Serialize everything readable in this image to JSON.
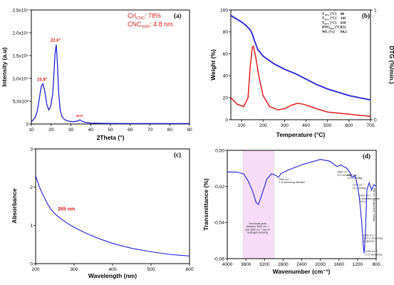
{
  "chart_data": [
    {
      "id": "a",
      "type": "line",
      "panel_label": "(a)",
      "xlabel": "2Theta (°)",
      "ylabel": "Intensity (a.u)",
      "xlim": [
        10,
        90
      ],
      "ylim": [
        0,
        25000
      ],
      "xticks": [
        "10",
        "20",
        "30",
        "40",
        "50",
        "60",
        "70",
        "80",
        "90"
      ],
      "yticks": [
        "0",
        "5,0x10³",
        "1,0x10⁴",
        "1,5x10⁴",
        "2,0x10⁴",
        "2,5x10⁴"
      ],
      "series": [
        {
          "color": "#1f1fd6",
          "x": [
            10,
            11,
            12,
            13,
            14,
            15,
            15.8,
            16.8,
            17.8,
            18.8,
            19.8,
            20.8,
            21.5,
            22.0,
            22.6,
            23.2,
            23.8,
            24.6,
            25.6,
            27,
            29,
            31,
            33,
            34.5,
            36,
            38,
            40,
            45,
            50,
            60,
            70,
            80,
            90
          ],
          "y": [
            500,
            900,
            1500,
            2800,
            5500,
            8200,
            8800,
            7200,
            4300,
            3100,
            3900,
            6500,
            11500,
            15500,
            17400,
            13000,
            7000,
            3000,
            1500,
            900,
            600,
            500,
            600,
            900,
            500,
            300,
            200,
            150,
            120,
            100,
            100,
            100,
            100
          ]
        }
      ],
      "peak_labels": [
        {
          "x": 15.8,
          "y": 8800,
          "text": "15.8°"
        },
        {
          "x": 22.6,
          "y": 17400,
          "text": "22.6°"
        },
        {
          "x": 34.5,
          "y": 900,
          "text": "34.5°"
        }
      ],
      "annotations": {
        "cri": "CrI",
        "cri_sub": "CNC",
        "cri_val": ": 78%",
        "cnc": "CNC",
        "cnc_sub": "XDR",
        "cnc_val": ": 4.8 nm"
      }
    },
    {
      "id": "b",
      "type": "line",
      "panel_label": "(b)",
      "xlabel": "Temperature (°C)",
      "ylabel": "Weight (%)",
      "y2label": "DTG (%/min.)",
      "xlim": [
        50,
        700
      ],
      "ylim": [
        0,
        100
      ],
      "y2lim": [
        0,
        1
      ],
      "xticks": [
        "100",
        "200",
        "300",
        "400",
        "500",
        "600",
        "700"
      ],
      "yticks": [
        "0",
        "20",
        "40",
        "60",
        "80",
        "100"
      ],
      "y2ticks": [
        "0",
        "1"
      ],
      "series": [
        {
          "axis": "left",
          "color": "#1f1fd6",
          "x": [
            50,
            75,
            100,
            120,
            140,
            150,
            160,
            175,
            200,
            250,
            300,
            350,
            400,
            450,
            500,
            550,
            600,
            650,
            700
          ],
          "y": [
            95,
            92,
            89,
            86,
            82,
            78,
            72,
            64,
            58,
            51,
            46,
            42,
            37,
            32,
            28,
            25,
            22,
            20,
            18
          ]
        },
        {
          "axis": "left",
          "color": "#e01b1b",
          "x": [
            50,
            80,
            110,
            130,
            140,
            150,
            155,
            165,
            180,
            200,
            230,
            270,
            300,
            330,
            360,
            390,
            420,
            450,
            500,
            550,
            600,
            650,
            700
          ],
          "y": [
            20,
            14,
            12,
            20,
            48,
            66,
            67,
            58,
            40,
            22,
            12,
            9,
            10,
            13,
            15,
            14,
            12,
            10,
            7,
            6,
            5,
            4,
            3
          ]
        }
      ],
      "table": [
        {
          "label": "T",
          "sub": "10%",
          "unit": " (°C)",
          "value": "88"
        },
        {
          "label": "T",
          "sub": "50%",
          "unit": " (°C)",
          "value": "243"
        },
        {
          "label": "T",
          "sub": "80%",
          "unit": " (°C)",
          "value": "618"
        },
        {
          "label": "DTG",
          "sub": "max",
          "unit": " (°C)",
          "value": "152"
        },
        {
          "label": "WL",
          "sub": "",
          "unit": " (%)",
          "value": "84.5"
        }
      ]
    },
    {
      "id": "c",
      "type": "line",
      "panel_label": "(c)",
      "xlabel": "Wavelength (nm)",
      "ylabel": "Absorbance",
      "xlim": [
        200,
        600
      ],
      "ylim": [
        0,
        3
      ],
      "xticks": [
        "200",
        "300",
        "400",
        "500",
        "600"
      ],
      "yticks": [
        "0",
        "1",
        "2",
        "3"
      ],
      "series": [
        {
          "color": "#1f1fd6",
          "x": [
            200,
            210,
            220,
            230,
            240,
            250,
            265,
            280,
            300,
            330,
            360,
            400,
            450,
            500,
            550,
            600
          ],
          "y": [
            2.3,
            2.0,
            1.78,
            1.58,
            1.42,
            1.3,
            1.18,
            1.07,
            0.95,
            0.8,
            0.67,
            0.53,
            0.4,
            0.31,
            0.24,
            0.2
          ]
        }
      ],
      "peak_labels": [
        {
          "x": 265,
          "y": 1.18,
          "text": "265 nm"
        }
      ]
    },
    {
      "id": "d",
      "type": "line",
      "panel_label": "(d)",
      "xlabel": "Wavenumber (cm⁻¹)",
      "ylabel": "Transmittance (%)",
      "xlim": [
        4000,
        800
      ],
      "ylim": [
        -0.06,
        0.0
      ],
      "xticks": [
        "4000",
        "3600",
        "3200",
        "2800",
        "2400",
        "2000",
        "1600",
        "1200",
        "800"
      ],
      "yticks": [
        "0,00",
        "-0,02",
        "-0,04",
        "-0,06"
      ],
      "shaded_range": [
        3650,
        3000
      ],
      "series": [
        {
          "color": "#1f1fd6",
          "x": [
            4000,
            3800,
            3650,
            3550,
            3450,
            3380,
            3330,
            3250,
            3150,
            3050,
            2950,
            2900,
            2850,
            2700,
            2400,
            2000,
            1800,
            1640,
            1560,
            1430,
            1370,
            1315,
            1250,
            1200,
            1163,
            1110,
            1080,
            1060,
            1035,
            1000,
            950,
            900,
            850,
            800
          ],
          "y": [
            -0.012,
            -0.012,
            -0.013,
            -0.017,
            -0.023,
            -0.029,
            -0.03,
            -0.024,
            -0.016,
            -0.013,
            -0.014,
            -0.015,
            -0.013,
            -0.011,
            -0.008,
            -0.005,
            -0.006,
            -0.009,
            -0.008,
            -0.01,
            -0.012,
            -0.015,
            -0.014,
            -0.02,
            -0.026,
            -0.04,
            -0.052,
            -0.057,
            -0.048,
            -0.022,
            -0.018,
            -0.022,
            -0.019,
            -0.02
          ]
        }
      ],
      "annotations": [
        {
          "x": 3350,
          "y": -0.041,
          "lines": [
            "The broad peak",
            "between 3000 cm⁻¹",
            "and 3600 cm⁻¹ due to",
            "hydrogen bonding"
          ]
        },
        {
          "x": 2900,
          "y": -0.0165,
          "lines": [
            "2900 cm⁻¹",
            "C-H stretching vibration"
          ]
        },
        {
          "x": 1640,
          "y": -0.0125,
          "lines": [
            "1640 cm⁻¹",
            "O-H bending"
          ]
        },
        {
          "x": 1430,
          "y": -0.0142,
          "lines": [
            "1430 cm⁻¹",
            "-CH₂ bending"
          ]
        },
        {
          "x": 1315,
          "y": -0.0196,
          "lines": [
            "1315 cm⁻¹",
            "CH₂ rocking"
          ]
        },
        {
          "x": 1163,
          "y": -0.0255,
          "lines": [
            "1163 cm⁻¹",
            "a sulphated group",
            "(SO₃)"
          ]
        },
        {
          "x": 1080,
          "y": -0.0475,
          "lines": [
            "1080 cm⁻¹",
            "C-O-C stretching",
            "of glucose"
          ]
        },
        {
          "x": 1035,
          "y": -0.0565,
          "lines": [
            "1035 cm⁻¹",
            "C-O stretching"
          ]
        },
        {
          "x": 880,
          "y": -0.021,
          "lines": [
            "880 cm⁻¹ β-glycosidic linkage"
          ],
          "vertical": true
        }
      ]
    }
  ]
}
